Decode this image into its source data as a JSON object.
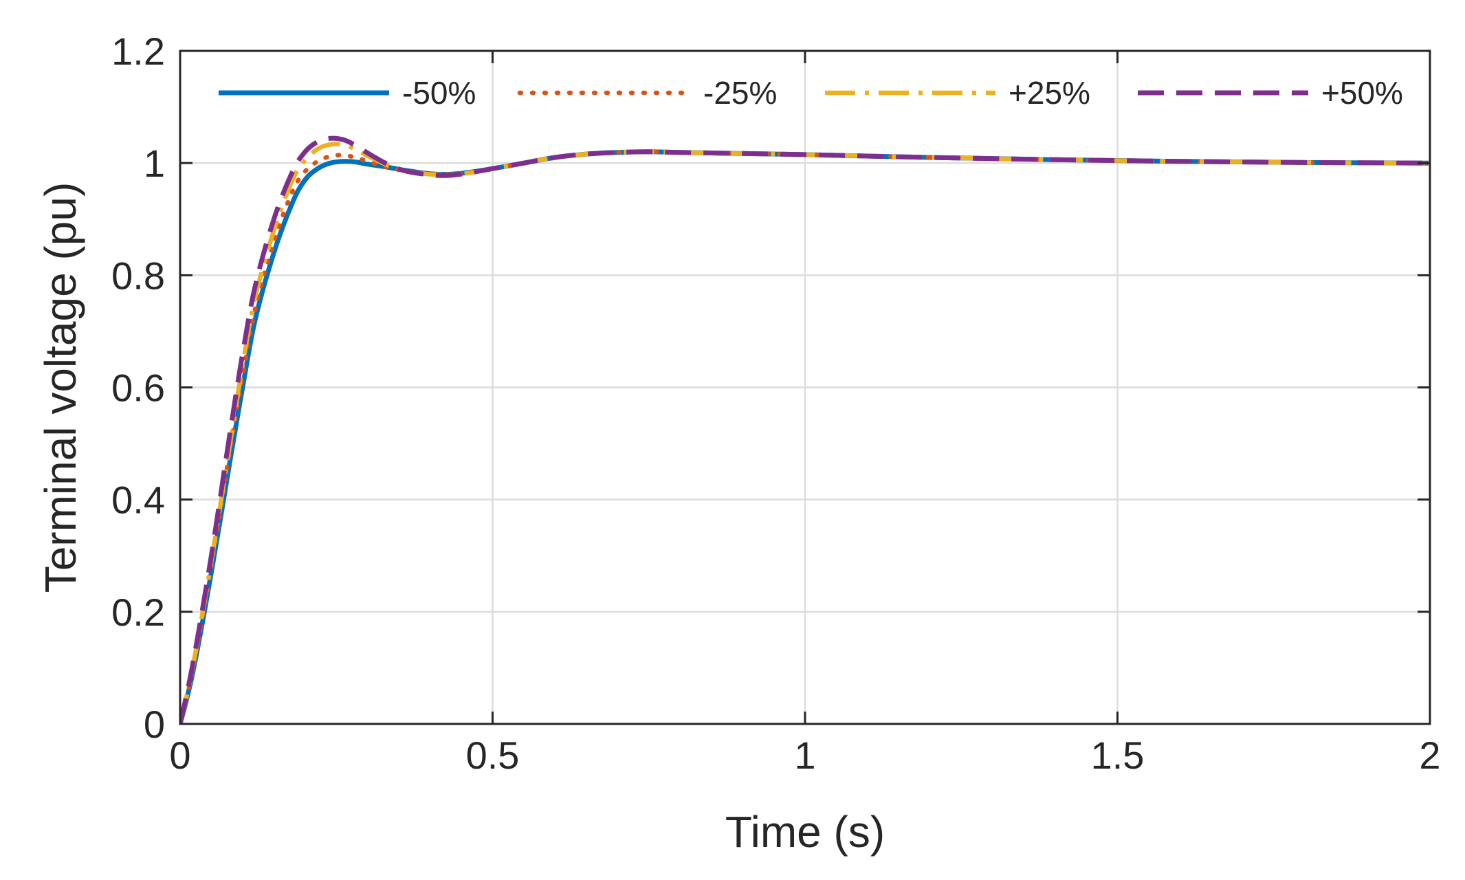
{
  "chart_data": {
    "type": "line",
    "title": "",
    "xlabel": "Time (s)",
    "ylabel": "Terminal voltage (pu)",
    "xlim": [
      0,
      2
    ],
    "ylim": [
      0,
      1.2
    ],
    "xticks": [
      0,
      0.5,
      1,
      1.5,
      2
    ],
    "xtick_labels": [
      "0",
      "0.5",
      "1",
      "1.5",
      "2"
    ],
    "yticks": [
      0,
      0.2,
      0.4,
      0.6,
      0.8,
      1,
      1.2
    ],
    "ytick_labels": [
      "0",
      "0.2",
      "0.4",
      "0.6",
      "0.8",
      "1",
      "1.2"
    ],
    "grid": true,
    "legend_position": "top",
    "legend_columns": 4,
    "series": [
      {
        "name": "-50%",
        "color": "#0072BD",
        "style": "solid",
        "x": [
          0,
          0.02,
          0.05,
          0.08,
          0.1,
          0.12,
          0.15,
          0.18,
          0.2,
          0.22,
          0.24,
          0.26,
          0.28,
          0.3,
          0.33,
          0.36,
          0.4,
          0.43,
          0.46,
          0.5,
          0.55,
          0.6,
          0.65,
          0.7,
          0.75,
          0.8,
          0.9,
          1.0,
          1.2,
          1.4,
          1.6,
          1.8,
          2.0
        ],
        "y": [
          0,
          0.09,
          0.27,
          0.47,
          0.6,
          0.72,
          0.84,
          0.93,
          0.97,
          0.99,
          1.0,
          1.003,
          1.002,
          0.998,
          0.993,
          0.987,
          0.981,
          0.98,
          0.983,
          0.99,
          1.0,
          1.01,
          1.016,
          1.019,
          1.02,
          1.019,
          1.017,
          1.015,
          1.01,
          1.006,
          1.003,
          1.001,
          1.0
        ]
      },
      {
        "name": "-25%",
        "color": "#D95319",
        "style": "dotted",
        "x": [
          0,
          0.02,
          0.05,
          0.08,
          0.1,
          0.12,
          0.15,
          0.18,
          0.2,
          0.22,
          0.24,
          0.26,
          0.28,
          0.3,
          0.33,
          0.36,
          0.4,
          0.43,
          0.46,
          0.5,
          0.55,
          0.6,
          0.65,
          0.7,
          0.75,
          0.8,
          0.9,
          1.0,
          1.2,
          1.4,
          1.6,
          1.8,
          2.0
        ],
        "y": [
          0,
          0.095,
          0.28,
          0.49,
          0.62,
          0.74,
          0.86,
          0.95,
          0.985,
          1.003,
          1.012,
          1.014,
          1.01,
          1.003,
          0.993,
          0.986,
          0.981,
          0.98,
          0.983,
          0.99,
          1.0,
          1.01,
          1.016,
          1.019,
          1.02,
          1.019,
          1.017,
          1.015,
          1.01,
          1.006,
          1.003,
          1.001,
          1.0
        ]
      },
      {
        "name": "+25%",
        "color": "#EDB120",
        "style": "dashdot",
        "x": [
          0,
          0.02,
          0.05,
          0.08,
          0.1,
          0.12,
          0.15,
          0.18,
          0.2,
          0.22,
          0.24,
          0.26,
          0.28,
          0.3,
          0.33,
          0.36,
          0.4,
          0.43,
          0.46,
          0.5,
          0.55,
          0.6,
          0.65,
          0.7,
          0.75,
          0.8,
          0.9,
          1.0,
          1.2,
          1.4,
          1.6,
          1.8,
          2.0
        ],
        "y": [
          0,
          0.1,
          0.29,
          0.5,
          0.64,
          0.76,
          0.88,
          0.97,
          1.005,
          1.025,
          1.033,
          1.033,
          1.025,
          1.013,
          0.997,
          0.986,
          0.98,
          0.979,
          0.982,
          0.99,
          1.0,
          1.01,
          1.016,
          1.019,
          1.02,
          1.019,
          1.017,
          1.015,
          1.01,
          1.006,
          1.003,
          1.001,
          1.0
        ]
      },
      {
        "name": "+50%",
        "color": "#7E2F8E",
        "style": "dashed",
        "x": [
          0,
          0.02,
          0.05,
          0.08,
          0.1,
          0.12,
          0.15,
          0.18,
          0.2,
          0.22,
          0.24,
          0.26,
          0.28,
          0.3,
          0.33,
          0.36,
          0.4,
          0.43,
          0.46,
          0.5,
          0.55,
          0.6,
          0.65,
          0.7,
          0.75,
          0.8,
          0.9,
          1.0,
          1.2,
          1.4,
          1.6,
          1.8,
          2.0
        ],
        "y": [
          0,
          0.105,
          0.3,
          0.52,
          0.66,
          0.78,
          0.9,
          0.985,
          1.02,
          1.038,
          1.044,
          1.042,
          1.032,
          1.018,
          0.999,
          0.986,
          0.979,
          0.978,
          0.982,
          0.99,
          1.0,
          1.01,
          1.016,
          1.019,
          1.02,
          1.019,
          1.017,
          1.015,
          1.01,
          1.006,
          1.003,
          1.001,
          1.0
        ]
      }
    ]
  }
}
